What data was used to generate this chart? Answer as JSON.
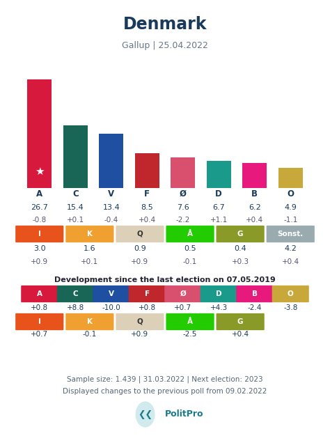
{
  "title": "Denmark",
  "subtitle": "Gallup | 25.04.2022",
  "background_color": "#ffffff",
  "main_parties": [
    "A",
    "C",
    "V",
    "F",
    "Ø",
    "D",
    "B",
    "O"
  ],
  "main_colors": [
    "#d7193d",
    "#1a6656",
    "#1f4fa0",
    "#c0272d",
    "#d94f6e",
    "#1a9a8a",
    "#e8197c",
    "#c8a83a"
  ],
  "main_values": [
    26.7,
    15.4,
    13.4,
    8.5,
    7.6,
    6.7,
    6.2,
    4.9
  ],
  "main_changes": [
    "-0.8",
    "+0.1",
    "-0.4",
    "+0.4",
    "-2.2",
    "+1.1",
    "+0.4",
    "-1.1"
  ],
  "small_parties": [
    "I",
    "K",
    "Q",
    "Å",
    "G",
    "Sonst."
  ],
  "small_colors": [
    "#e8531c",
    "#f0a030",
    "#ddd0b8",
    "#22cc00",
    "#8a9a28",
    "#9aabb0"
  ],
  "small_values": [
    "3.0",
    "1.6",
    "0.9",
    "0.5",
    "0.4",
    "4.2"
  ],
  "small_changes": [
    "+0.9",
    "+0.1",
    "+0.9",
    "-0.1",
    "+0.3",
    "+0.4"
  ],
  "dev_title": "Development since the last election on 07.05.2019",
  "dev_main_parties": [
    "A",
    "C",
    "V",
    "F",
    "Ø",
    "D",
    "B",
    "O"
  ],
  "dev_main_colors": [
    "#d7193d",
    "#1a6656",
    "#1f4fa0",
    "#c0272d",
    "#d94f6e",
    "#1a9a8a",
    "#e8197c",
    "#c8a83a"
  ],
  "dev_main_changes": [
    "+0.8",
    "+8.8",
    "-10.0",
    "+0.8",
    "+0.7",
    "+4.3",
    "-2.4",
    "-3.8"
  ],
  "dev_small_parties": [
    "I",
    "K",
    "Q",
    "Å",
    "G"
  ],
  "dev_small_colors": [
    "#e8531c",
    "#f0a030",
    "#ddd0b8",
    "#22cc00",
    "#8a9a28"
  ],
  "dev_small_changes": [
    "+0.7",
    "-0.1",
    "+0.9",
    "-2.5",
    "+0.4"
  ],
  "footer1": "Sample size: 1.439 | 31.03.2022 | Next election: 2023",
  "footer2": "Displayed changes to the previous poll from 09.02.2022",
  "text_color": "#1a3a5c",
  "label_color": "#1a3a5c",
  "change_color": "#555577"
}
